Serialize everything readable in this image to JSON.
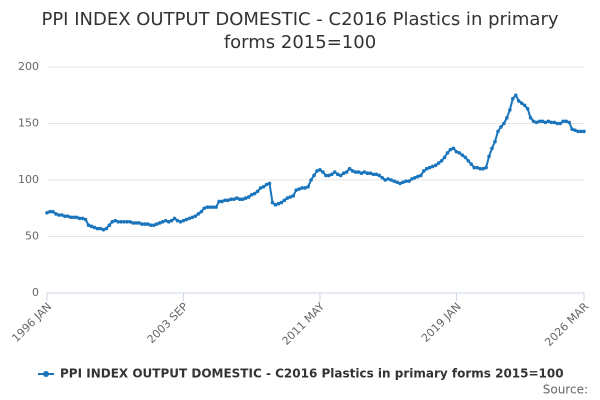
{
  "chart_data": {
    "type": "line",
    "title": "PPI INDEX OUTPUT DOMESTIC - C2016 Plastics in primary forms 2015=100",
    "source": "Source:",
    "categories": [
      "1996 JAN",
      null,
      null,
      null,
      null,
      null,
      null,
      null,
      null,
      null,
      null,
      null,
      null,
      null,
      null,
      null,
      null,
      null,
      null,
      null,
      null,
      null,
      null,
      null,
      null,
      null,
      null,
      null,
      null,
      null,
      null,
      null,
      null,
      null,
      null,
      null,
      null,
      null,
      null,
      null,
      null,
      null,
      null,
      null,
      null,
      null,
      "2003 SEP",
      null,
      null,
      null,
      null,
      null,
      null,
      null,
      null,
      null,
      null,
      null,
      null,
      null,
      null,
      null,
      null,
      null,
      null,
      null,
      null,
      null,
      null,
      null,
      null,
      null,
      null,
      null,
      null,
      null,
      null,
      null,
      null,
      null,
      null,
      null,
      null,
      null,
      null,
      null,
      null,
      null,
      null,
      null,
      null,
      null,
      "2011 MAY",
      null,
      null,
      null,
      null,
      null,
      null,
      null,
      null,
      null,
      null,
      null,
      null,
      null,
      null,
      null,
      null,
      null,
      null,
      null,
      null,
      null,
      null,
      null,
      null,
      null,
      null,
      null,
      null,
      null,
      null,
      null,
      null,
      null,
      null,
      null,
      null,
      null,
      null,
      null,
      null,
      null,
      null,
      null,
      null,
      null,
      "2019 JAN",
      null,
      null,
      null,
      null,
      null,
      null,
      null,
      null,
      null,
      null,
      null,
      null,
      null,
      null,
      null,
      null,
      null,
      null,
      null,
      null,
      null,
      null,
      null,
      null,
      null,
      null,
      null,
      null,
      null,
      null,
      null,
      null,
      null,
      null,
      null,
      null,
      null,
      null,
      null,
      null,
      null,
      null,
      "2026 MAR"
    ],
    "series": [
      {
        "name": "PPI INDEX OUTPUT DOMESTIC - C2016 Plastics in primary forms 2015=100",
        "color": "#1a75bc",
        "values": [
          71,
          72,
          72,
          70,
          69,
          69,
          68,
          68,
          67,
          67,
          67,
          66,
          66,
          65,
          60,
          59,
          58,
          57,
          57,
          56,
          57,
          60,
          63,
          64,
          63,
          63,
          63,
          63,
          63,
          62,
          62,
          62,
          61,
          61,
          61,
          60,
          60,
          61,
          62,
          63,
          64,
          63,
          64,
          66,
          64,
          63,
          64,
          65,
          66,
          67,
          68,
          70,
          72,
          75,
          76,
          76,
          76,
          76,
          81,
          81,
          82,
          82,
          83,
          83,
          84,
          83,
          83,
          84,
          85,
          87,
          88,
          90,
          93,
          94,
          96,
          97,
          80,
          78,
          79,
          80,
          82,
          84,
          85,
          86,
          91,
          92,
          93,
          93,
          94,
          100,
          104,
          108,
          109,
          107,
          104,
          104,
          105,
          107,
          105,
          104,
          106,
          107,
          110,
          108,
          107,
          107,
          106,
          107,
          106,
          106,
          105,
          105,
          104,
          102,
          100,
          101,
          100,
          99,
          98,
          97,
          98,
          99,
          99,
          101,
          102,
          103,
          104,
          108,
          110,
          111,
          112,
          113,
          115,
          117,
          120,
          124,
          127,
          128,
          125,
          124,
          122,
          120,
          117,
          114,
          111,
          111,
          110,
          110,
          111,
          121,
          128,
          134,
          143,
          147,
          150,
          155,
          162,
          172,
          175,
          170,
          168,
          166,
          163,
          155,
          152,
          151,
          152,
          152,
          151,
          152,
          151,
          151,
          150,
          150,
          152,
          152,
          151,
          145,
          144,
          143,
          143,
          143
        ]
      }
    ],
    "ylim": [
      0,
      200
    ],
    "yticks": [
      0,
      50,
      100,
      150,
      200
    ],
    "grid": true
  }
}
